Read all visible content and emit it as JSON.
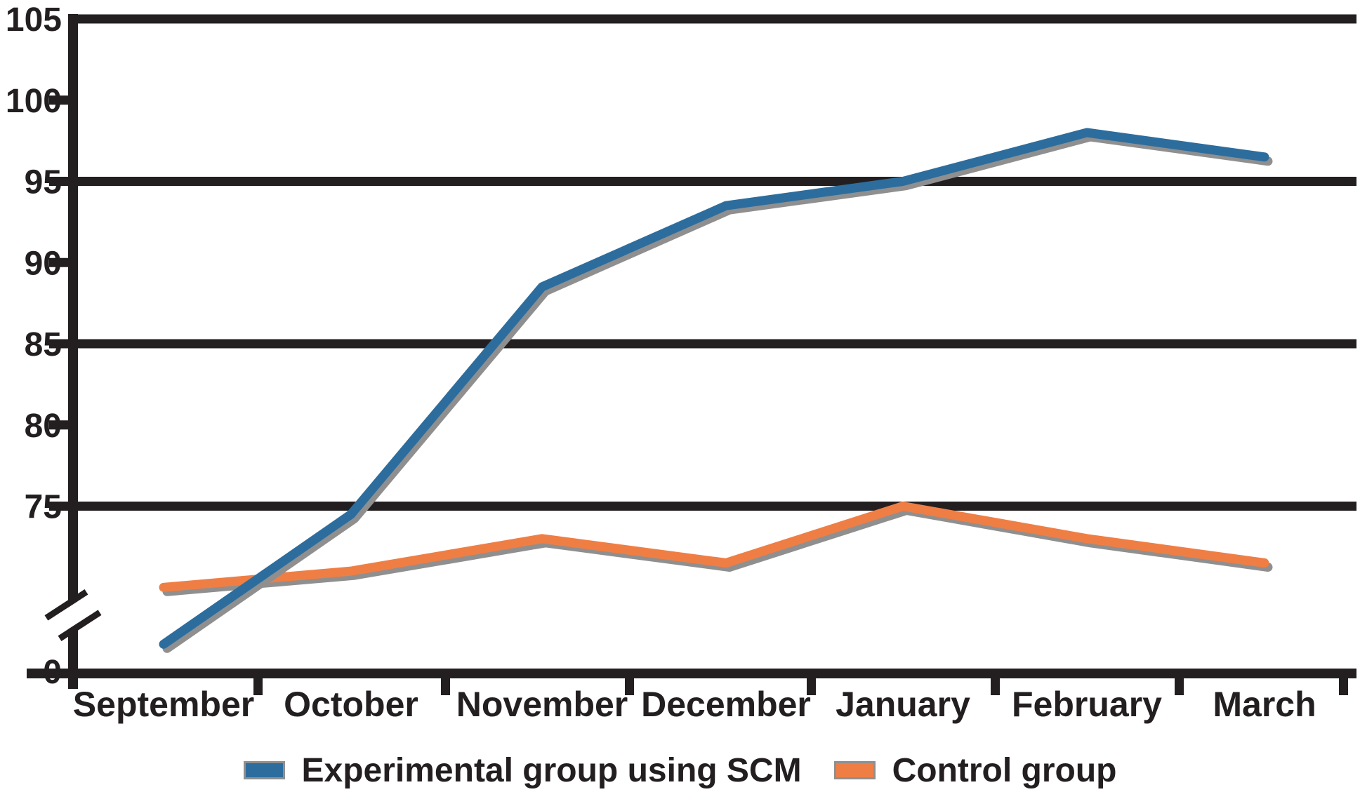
{
  "chart_data": {
    "type": "line",
    "title": "",
    "xlabel": "",
    "ylabel": "",
    "categories": [
      "September",
      "October",
      "November",
      "December",
      "January",
      "February",
      "March"
    ],
    "series": [
      {
        "name": "Experimental group using SCM",
        "color": "#2d6d9d",
        "values": [
          66.5,
          74.5,
          88.5,
          93.5,
          95,
          98,
          96.5
        ]
      },
      {
        "name": "Control group",
        "color": "#ef7e45",
        "values": [
          70,
          71,
          73,
          71.5,
          75,
          73,
          71.5
        ]
      }
    ],
    "y_axis": {
      "tick_labels": [
        "105",
        "100",
        "95",
        "90",
        "85",
        "80",
        "75",
        "0"
      ],
      "gridline_values": [
        105,
        95,
        85,
        75
      ],
      "minor_tick_values": [
        100,
        90,
        80
      ],
      "zero_baseline_label": "0",
      "has_axis_break_between_0_and_75": true,
      "ylim": [
        0,
        105
      ]
    },
    "legend": {
      "position": "bottom",
      "entries": [
        "Experimental group using SCM",
        "Control group"
      ]
    },
    "grid": true,
    "notes": "September point of the experimental series is drawn below the y-axis break, near the 0 baseline"
  },
  "colors": {
    "axis_and_text": "#231f20",
    "experimental_line": "#2d6d9d",
    "control_line": "#ef7e45",
    "halo_gray": "#8f8f8f",
    "background": "#ffffff"
  }
}
